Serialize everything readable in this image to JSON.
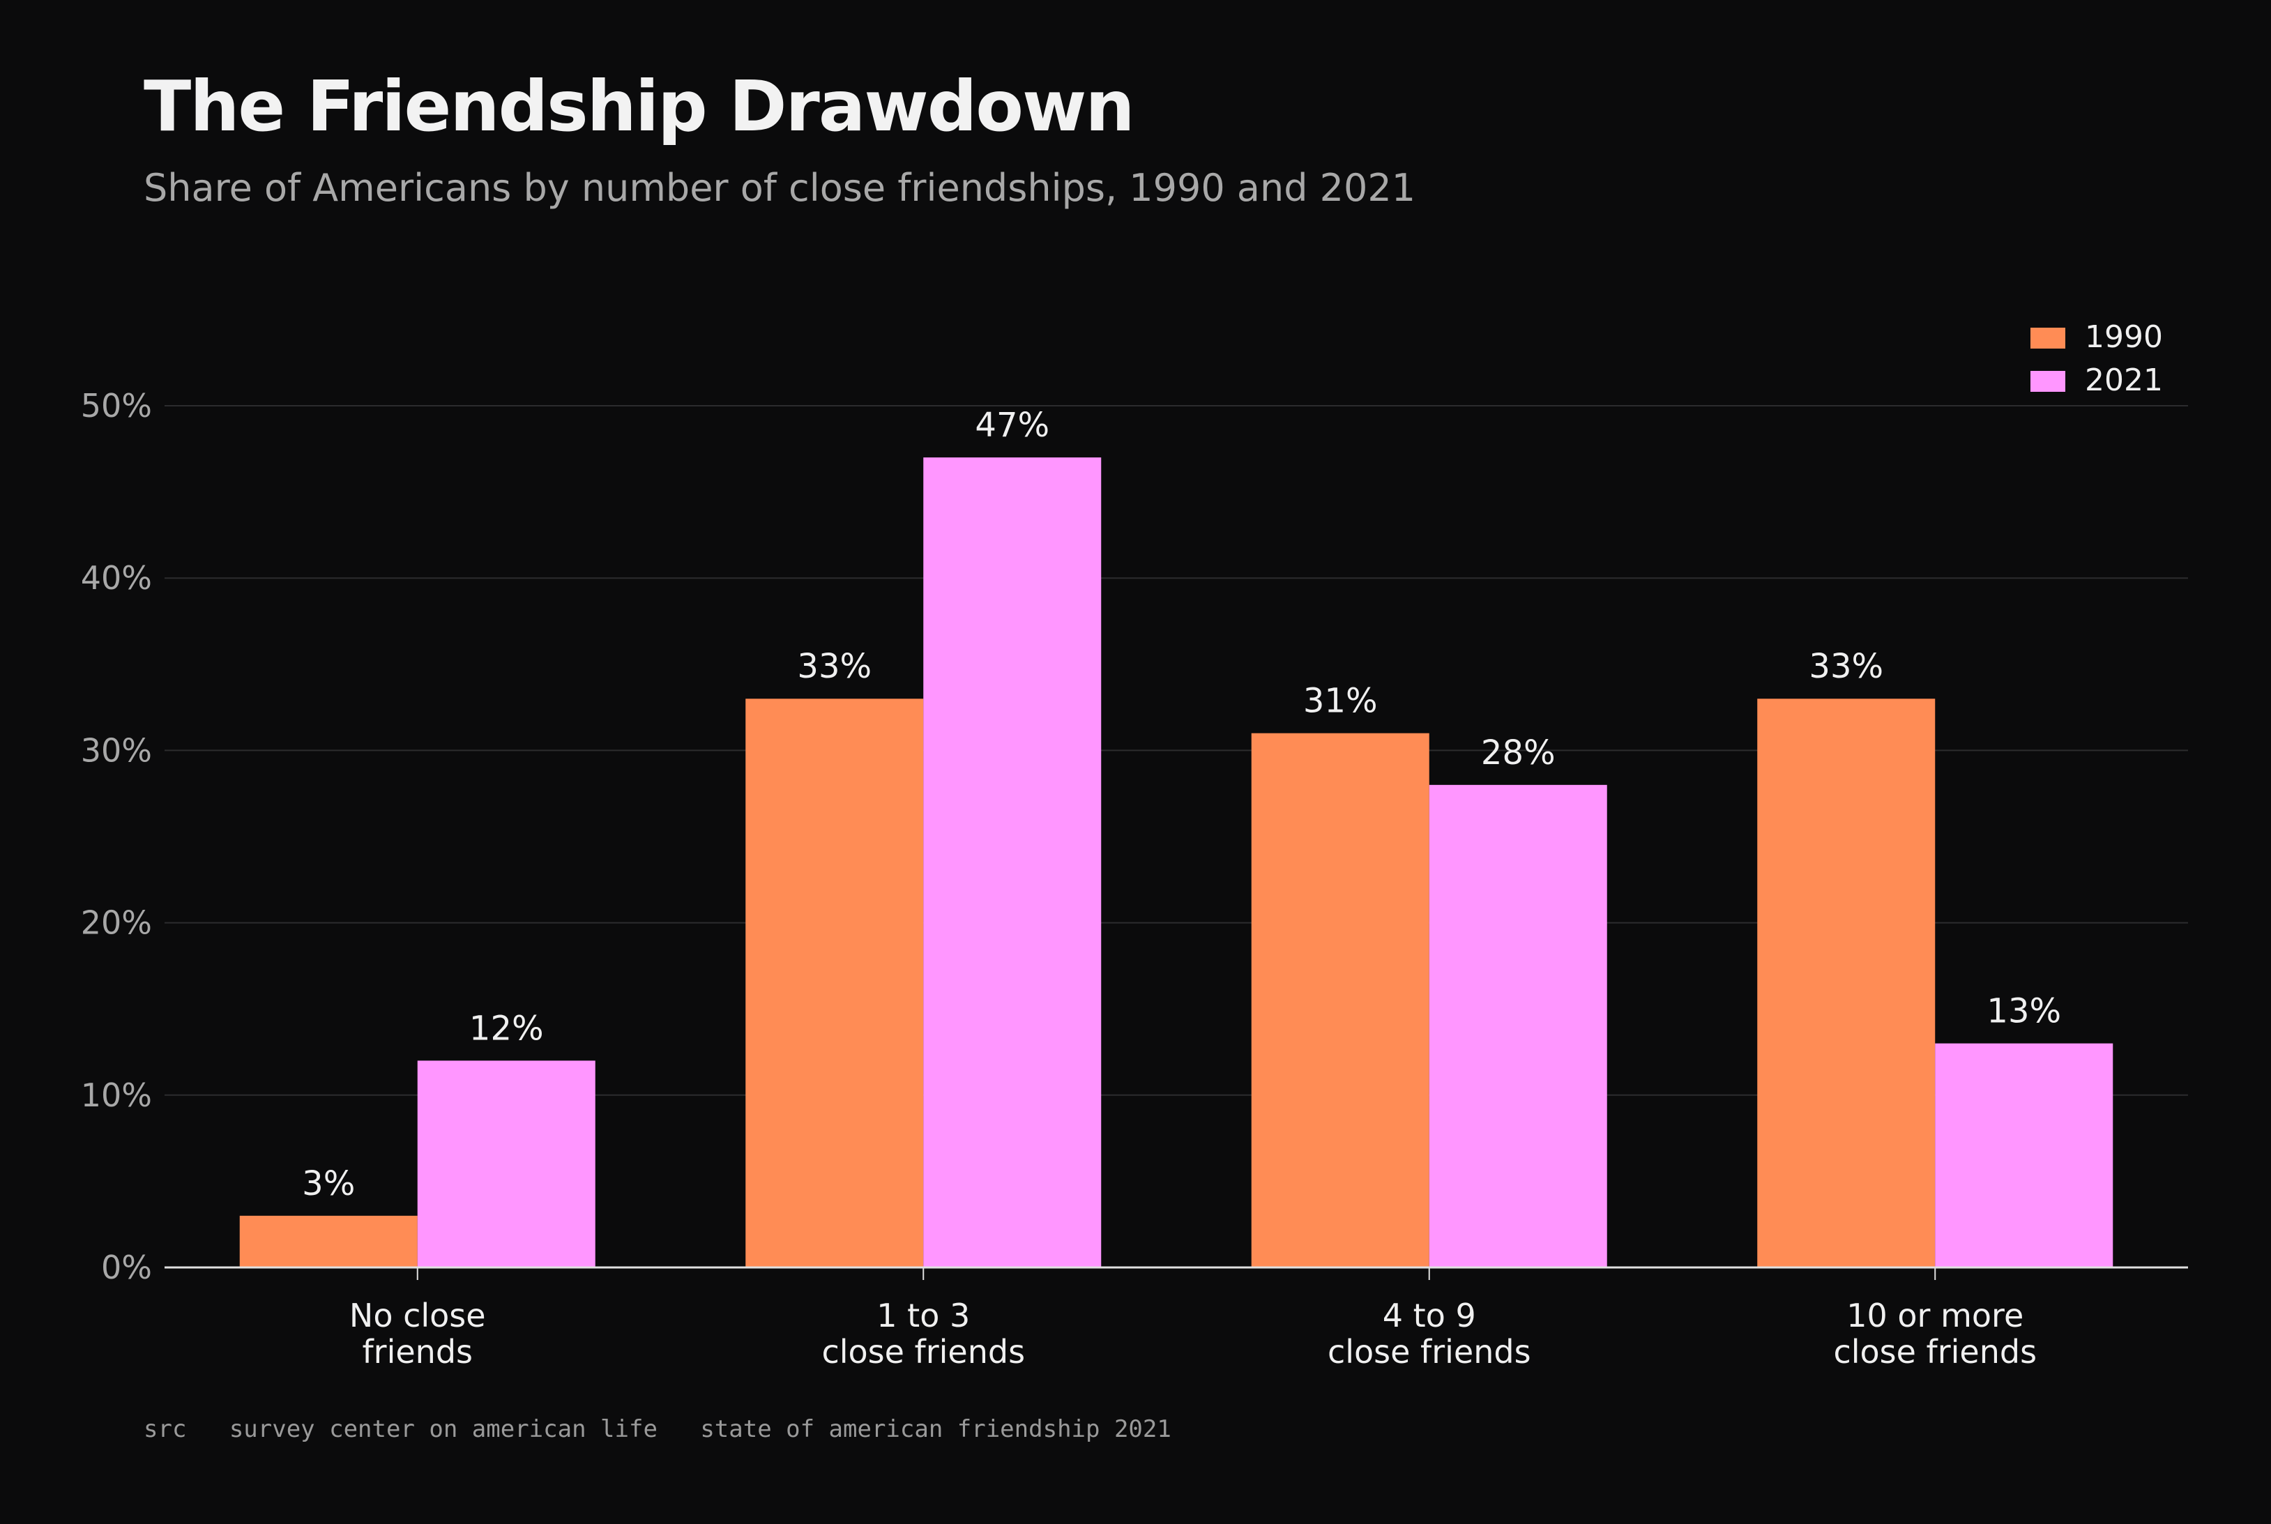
{
  "title": "The Friendship Drawdown",
  "subtitle": "Share of Americans by number of close friendships, 1990 and 2021",
  "source": "src   survey center on american life   state of american friendship 2021",
  "colors": {
    "background": "#0b0b0c",
    "grid": "#2c2c2e",
    "axis": "#e0e0e0"
  },
  "chart_data": {
    "type": "bar",
    "title": "The Friendship Drawdown",
    "subtitle": "Share of Americans by number of close friendships, 1990 and 2021",
    "categories": [
      [
        "No close",
        "friends"
      ],
      [
        "1 to 3",
        "close friends"
      ],
      [
        "4 to 9",
        "close friends"
      ],
      [
        "10 or more",
        "close friends"
      ]
    ],
    "series": [
      {
        "name": "1990",
        "color": "#ff8c55",
        "values": [
          3,
          33,
          31,
          33
        ]
      },
      {
        "name": "2021",
        "color": "#ff96ff",
        "values": [
          12,
          47,
          28,
          13
        ]
      }
    ],
    "value_labels": [
      [
        "3%",
        "33%",
        "31%",
        "33%"
      ],
      [
        "12%",
        "47%",
        "28%",
        "13%"
      ]
    ],
    "y_ticks": [
      0,
      10,
      20,
      30,
      40,
      50
    ],
    "y_tick_labels": [
      "0%",
      "10%",
      "20%",
      "30%",
      "40%",
      "50%"
    ],
    "ylim": [
      0,
      50
    ],
    "xlabel": "",
    "ylabel": "",
    "grid": true,
    "legend_position": "top-right"
  }
}
